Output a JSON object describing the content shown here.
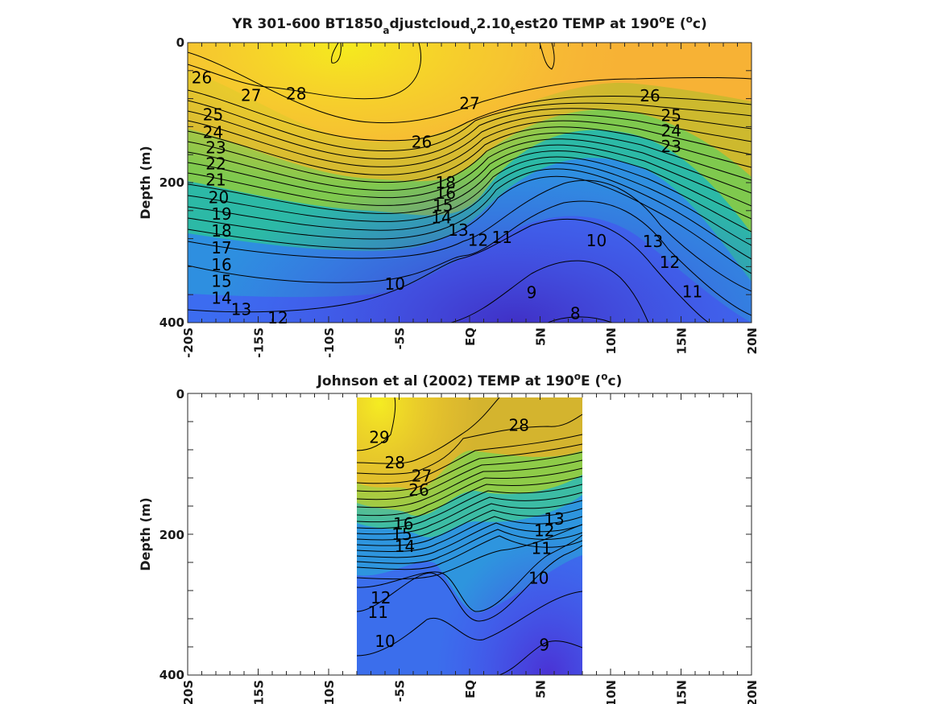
{
  "chart_data": [
    {
      "type": "heatmap",
      "title_parts": [
        "YR 301-600 BT1850",
        "a",
        "djustcloud",
        "v",
        "2.10",
        "t",
        "est20 TEMP at 190",
        "o",
        "E (",
        "o",
        "c)"
      ],
      "ylabel": "Depth (m)",
      "yticks": [
        "0",
        "200",
        "400"
      ],
      "xticks": [
        "-20S",
        "-15S",
        "-10S",
        "-5S",
        "EQ",
        "5N",
        "10N",
        "15N",
        "20N"
      ],
      "xlim": [
        -20,
        20
      ],
      "ylim": [
        0,
        400
      ],
      "contour_levels": [
        8,
        9,
        10,
        11,
        12,
        13,
        14,
        15,
        16,
        17,
        18,
        19,
        20,
        21,
        22,
        23,
        24,
        25,
        26,
        27,
        28
      ],
      "labels": [
        {
          "text": "26",
          "lat": -19,
          "depth": 50
        },
        {
          "text": "27",
          "lat": -15.5,
          "depth": 75
        },
        {
          "text": "28",
          "lat": -12.3,
          "depth": 73
        },
        {
          "text": "25",
          "lat": -18.2,
          "depth": 103
        },
        {
          "text": "24",
          "lat": -18.2,
          "depth": 128
        },
        {
          "text": "23",
          "lat": -18.0,
          "depth": 150
        },
        {
          "text": "22",
          "lat": -18.0,
          "depth": 173
        },
        {
          "text": "21",
          "lat": -18.0,
          "depth": 196
        },
        {
          "text": "20",
          "lat": -17.8,
          "depth": 221
        },
        {
          "text": "19",
          "lat": -17.6,
          "depth": 245
        },
        {
          "text": "18",
          "lat": -17.6,
          "depth": 269
        },
        {
          "text": "17",
          "lat": -17.6,
          "depth": 293
        },
        {
          "text": "16",
          "lat": -17.6,
          "depth": 317
        },
        {
          "text": "15",
          "lat": -17.6,
          "depth": 341
        },
        {
          "text": "14",
          "lat": -17.6,
          "depth": 365
        },
        {
          "text": "13",
          "lat": -16.2,
          "depth": 381
        },
        {
          "text": "12",
          "lat": -13.6,
          "depth": 393
        },
        {
          "text": "27",
          "lat": 0.0,
          "depth": 87
        },
        {
          "text": "26",
          "lat": -3.4,
          "depth": 142
        },
        {
          "text": "26",
          "lat": 12.8,
          "depth": 76
        },
        {
          "text": "25",
          "lat": 14.3,
          "depth": 104
        },
        {
          "text": "24",
          "lat": 14.3,
          "depth": 126
        },
        {
          "text": "23",
          "lat": 14.3,
          "depth": 148
        },
        {
          "text": "18",
          "lat": -1.7,
          "depth": 200
        },
        {
          "text": "16",
          "lat": -1.7,
          "depth": 215
        },
        {
          "text": "15",
          "lat": -1.9,
          "depth": 233
        },
        {
          "text": "14",
          "lat": -2.0,
          "depth": 250
        },
        {
          "text": "13",
          "lat": -0.8,
          "depth": 268
        },
        {
          "text": "12",
          "lat": 0.6,
          "depth": 282
        },
        {
          "text": "11",
          "lat": 2.3,
          "depth": 278
        },
        {
          "text": "10",
          "lat": 9.0,
          "depth": 283
        },
        {
          "text": "13",
          "lat": 13.0,
          "depth": 284
        },
        {
          "text": "12",
          "lat": 14.2,
          "depth": 314
        },
        {
          "text": "11",
          "lat": 15.8,
          "depth": 356
        },
        {
          "text": "10",
          "lat": -5.3,
          "depth": 345
        },
        {
          "text": "9",
          "lat": 4.4,
          "depth": 357
        },
        {
          "text": "8",
          "lat": 7.5,
          "depth": 387
        }
      ]
    },
    {
      "type": "heatmap",
      "title_parts": [
        "Johnson et al (2002) TEMP at 190",
        "o",
        "E (",
        "o",
        "c)"
      ],
      "ylabel": "Depth (m)",
      "yticks": [
        "0",
        "200",
        "400"
      ],
      "xticks": [
        "-20S",
        "-15S",
        "-10S",
        "-5S",
        "EQ",
        "5N",
        "10N",
        "15N",
        "20N"
      ],
      "xlim": [
        -20,
        20
      ],
      "ylim": [
        0,
        400
      ],
      "data_lat_range": [
        -8,
        8
      ],
      "contour_levels": [
        9,
        10,
        11,
        12,
        13,
        14,
        15,
        16,
        17,
        18,
        19,
        20,
        21,
        22,
        23,
        24,
        25,
        26,
        27,
        28,
        29
      ],
      "labels": [
        {
          "text": "29",
          "lat": -6.4,
          "depth": 62
        },
        {
          "text": "28",
          "lat": -5.3,
          "depth": 98
        },
        {
          "text": "27",
          "lat": -3.4,
          "depth": 117
        },
        {
          "text": "26",
          "lat": -3.6,
          "depth": 137
        },
        {
          "text": "28",
          "lat": 3.5,
          "depth": 45
        },
        {
          "text": "16",
          "lat": -4.7,
          "depth": 185
        },
        {
          "text": "15",
          "lat": -4.8,
          "depth": 200
        },
        {
          "text": "14",
          "lat": -4.6,
          "depth": 217
        },
        {
          "text": "13",
          "lat": 6.0,
          "depth": 178
        },
        {
          "text": "12",
          "lat": 5.3,
          "depth": 195
        },
        {
          "text": "11",
          "lat": 5.1,
          "depth": 220
        },
        {
          "text": "10",
          "lat": 4.9,
          "depth": 262
        },
        {
          "text": "12",
          "lat": -6.3,
          "depth": 290
        },
        {
          "text": "11",
          "lat": -6.5,
          "depth": 311
        },
        {
          "text": "10",
          "lat": -6.0,
          "depth": 352
        },
        {
          "text": "9",
          "lat": 5.3,
          "depth": 357
        }
      ]
    }
  ]
}
